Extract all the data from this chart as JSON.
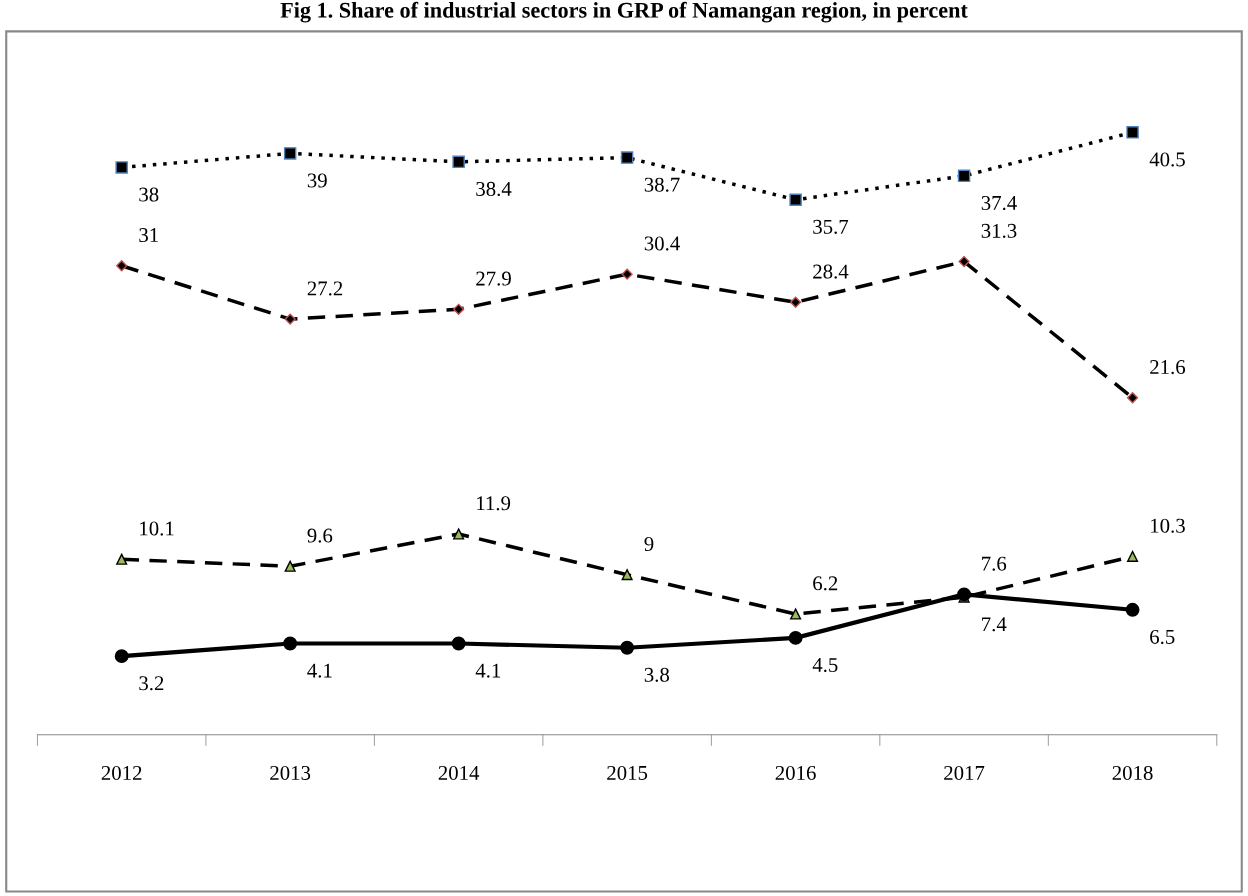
{
  "chart_data": {
    "type": "line",
    "title": "Fig 1. Share of industrial sectors in GRP of Namangan region, in percent",
    "categories": [
      "2012",
      "2013",
      "2014",
      "2015",
      "2016",
      "2017",
      "2018"
    ],
    "series": [
      {
        "color": "#000000",
        "values": [
          38,
          39,
          38.4,
          38.7,
          35.7,
          37.4,
          40.5
        ],
        "marker": "square",
        "line_style": "dotted"
      },
      {
        "color": "#000000",
        "values": [
          31,
          27.2,
          27.9,
          30.4,
          28.4,
          31.3,
          21.6
        ],
        "marker": "diamond",
        "line_style": "dashed"
      },
      {
        "color": "#000000",
        "values": [
          10.1,
          9.6,
          11.9,
          9,
          6.2,
          7.4,
          10.3
        ],
        "marker": "triangle",
        "line_style": "dashed"
      },
      {
        "color": "#000000",
        "values": [
          3.2,
          4.1,
          4.1,
          3.8,
          4.5,
          7.6,
          6.5
        ],
        "marker": "circle",
        "line_style": "solid"
      }
    ],
    "tick_labels": "x",
    "data_labels": true,
    "grid": false,
    "legend": false
  }
}
